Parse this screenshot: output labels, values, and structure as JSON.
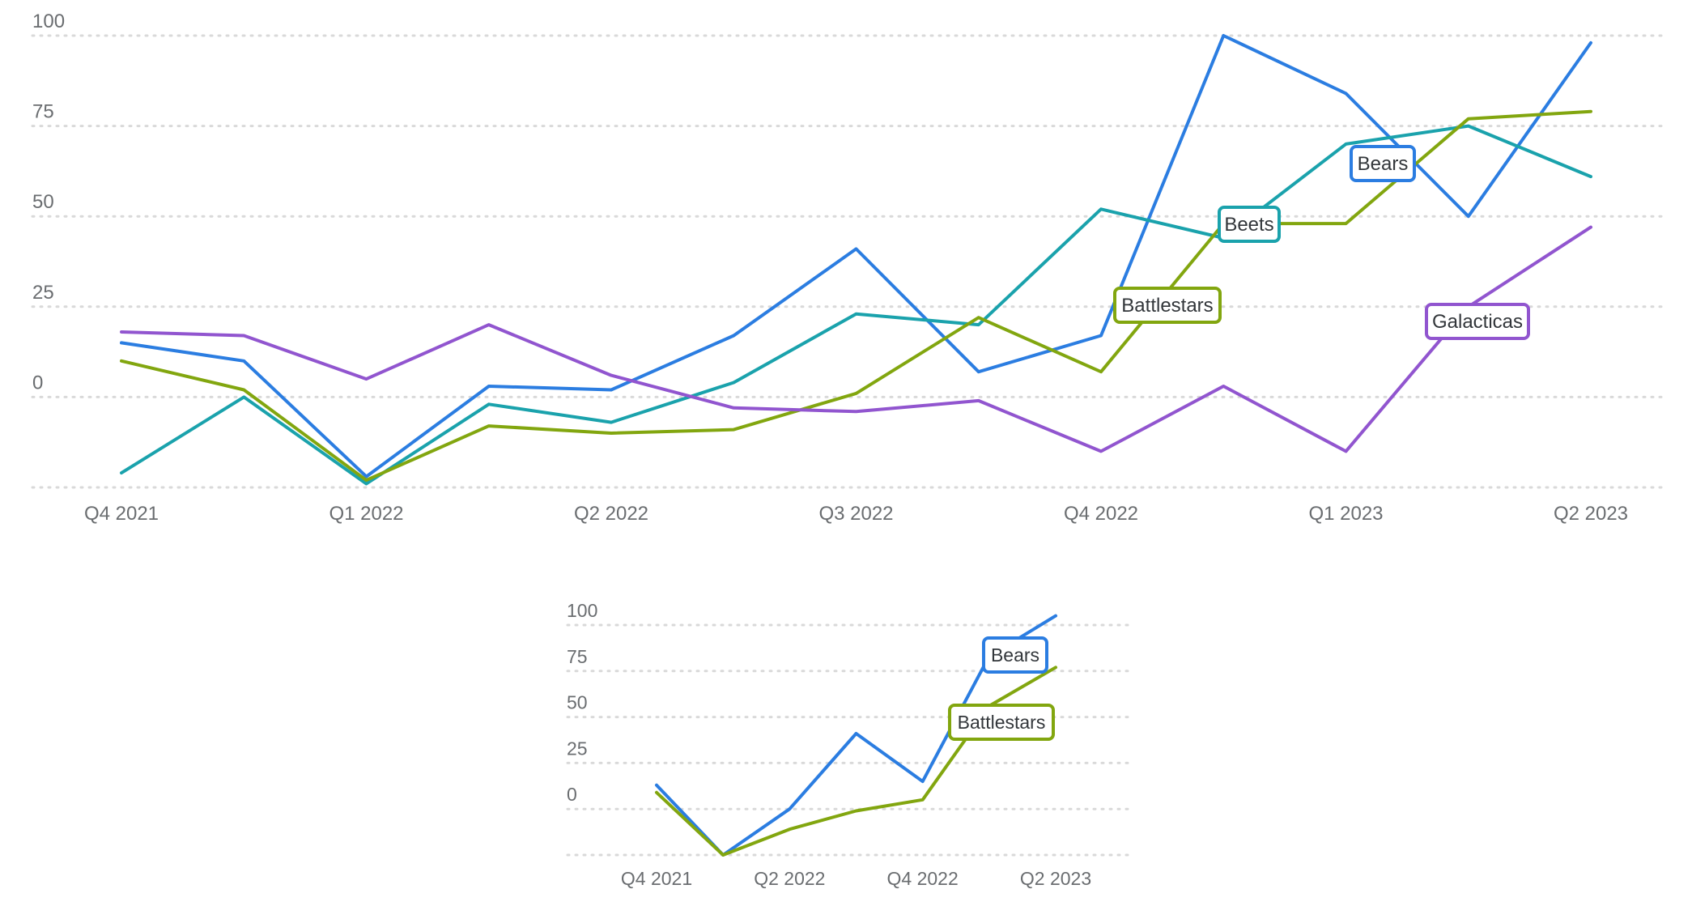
{
  "chart_data": [
    {
      "type": "line",
      "title": "",
      "xlabel": "",
      "ylabel": "",
      "x": [
        "Q4 2021",
        "",
        "Q1 2022",
        "",
        "Q2 2022",
        "",
        "Q3 2022",
        "",
        "Q4 2022",
        "",
        "Q1 2023",
        "",
        "Q2 2023"
      ],
      "x_tick_labels": [
        "Q4 2021",
        "Q1 2022",
        "Q2 2022",
        "Q3 2022",
        "Q4 2022",
        "Q1 2023",
        "Q2 2023"
      ],
      "y_tick_labels": [
        "100",
        "75",
        "50",
        "25",
        "0"
      ],
      "ylim": [
        -25,
        100
      ],
      "grid": true,
      "series": [
        {
          "name": "Bears",
          "color": "#2b7de1",
          "values": [
            15,
            10,
            -22,
            3,
            2,
            17,
            41,
            7,
            17,
            100,
            84,
            50,
            98
          ]
        },
        {
          "name": "Beets",
          "color": "#1aa2ac",
          "values": [
            -21,
            0,
            -24,
            -2,
            -7,
            4,
            23,
            20,
            52,
            44,
            70,
            75,
            61
          ]
        },
        {
          "name": "Battlestars",
          "color": "#82a60f",
          "values": [
            10,
            2,
            -23,
            -8,
            -10,
            -9,
            1,
            22,
            7,
            48,
            48,
            77,
            79
          ]
        },
        {
          "name": "Galacticas",
          "color": "#9155cf",
          "values": [
            18,
            17,
            5,
            20,
            6,
            -3,
            -4,
            -1,
            -15,
            3,
            -15,
            25,
            47
          ]
        }
      ]
    },
    {
      "type": "line",
      "title": "",
      "xlabel": "",
      "ylabel": "",
      "x": [
        "Q4 2021",
        "",
        "Q2 2022",
        "",
        "Q4 2022",
        "",
        "Q2 2023"
      ],
      "x_tick_labels": [
        "Q4 2021",
        "Q2 2022",
        "Q4 2022",
        "Q2 2023"
      ],
      "y_tick_labels": [
        "100",
        "75",
        "50",
        "25",
        "0"
      ],
      "ylim": [
        -25,
        100
      ],
      "grid": true,
      "series": [
        {
          "name": "Bears",
          "color": "#2b7de1",
          "values": [
            13,
            -25,
            0,
            41,
            15,
            83,
            105
          ]
        },
        {
          "name": "Battlestars",
          "color": "#82a60f",
          "values": [
            9,
            -25,
            -11,
            -1,
            5,
            56,
            77
          ]
        }
      ]
    }
  ]
}
